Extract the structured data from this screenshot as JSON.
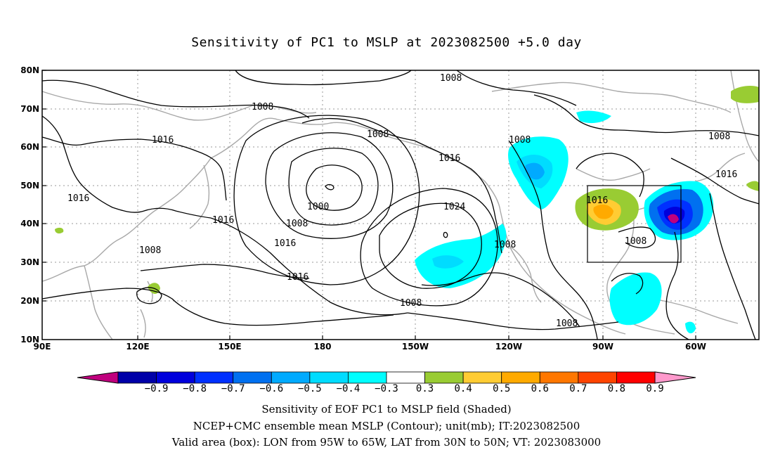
{
  "title": "Sensitivity of PC1 to MSLP at 2023082500 +5.0 day",
  "map": {
    "lat_labels": [
      "80N",
      "70N",
      "60N",
      "50N",
      "40N",
      "30N",
      "20N",
      "10N"
    ],
    "lon_labels": [
      "90E",
      "120E",
      "150E",
      "180",
      "150W",
      "120W",
      "90W",
      "60W"
    ],
    "contour_labels": {
      "c1008_top": "1008",
      "c1008_nw": "1008",
      "c1008_center": "1008",
      "c1008_goa": "1008",
      "c1008_can": "1008",
      "c1008_east": "1008",
      "c1016_ne": "1016",
      "c1016_w": "1016",
      "c1016_japan": "1016",
      "c1016_ak": "1016",
      "c1016_box": "1016",
      "c1000": "1000",
      "c1008_low": "1008",
      "c1016_low": "1016",
      "c1024": "1024",
      "c1008_ca": "1008",
      "c1008_box": "1008",
      "c1016_mid": "1016",
      "c1008_wpac": "1008",
      "c1016_sub": "1016",
      "c1008_tropics": "1008"
    },
    "valid_box": {
      "lon_from": "95W",
      "lon_to": "65W",
      "lat_from": "30N",
      "lat_to": "50N"
    }
  },
  "colorbar": {
    "labels": [
      "−0.9",
      "−0.8",
      "−0.7",
      "−0.6",
      "−0.5",
      "−0.4",
      "−0.3",
      "0.3",
      "0.4",
      "0.5",
      "0.6",
      "0.7",
      "0.8",
      "0.9"
    ],
    "colors": [
      "#c0007e",
      "#0000a8",
      "#0000dc",
      "#0030ff",
      "#0070f0",
      "#00aaff",
      "#00dcff",
      "#00ffff",
      "#ffffff",
      "#99cc33",
      "#ffcc33",
      "#ffaa00",
      "#ff7700",
      "#ff4400",
      "#ff0000",
      "#ff99cc"
    ]
  },
  "footer": {
    "line1": "Sensitivity of EOF PC1 to MSLP field (Shaded)",
    "line2": "NCEP+CMC ensemble mean MSLP (Contour); unit(mb); IT:2023082500",
    "line3": "Valid area (box): LON from 95W to 65W, LAT from 30N to 50N; VT: 2023083000"
  }
}
